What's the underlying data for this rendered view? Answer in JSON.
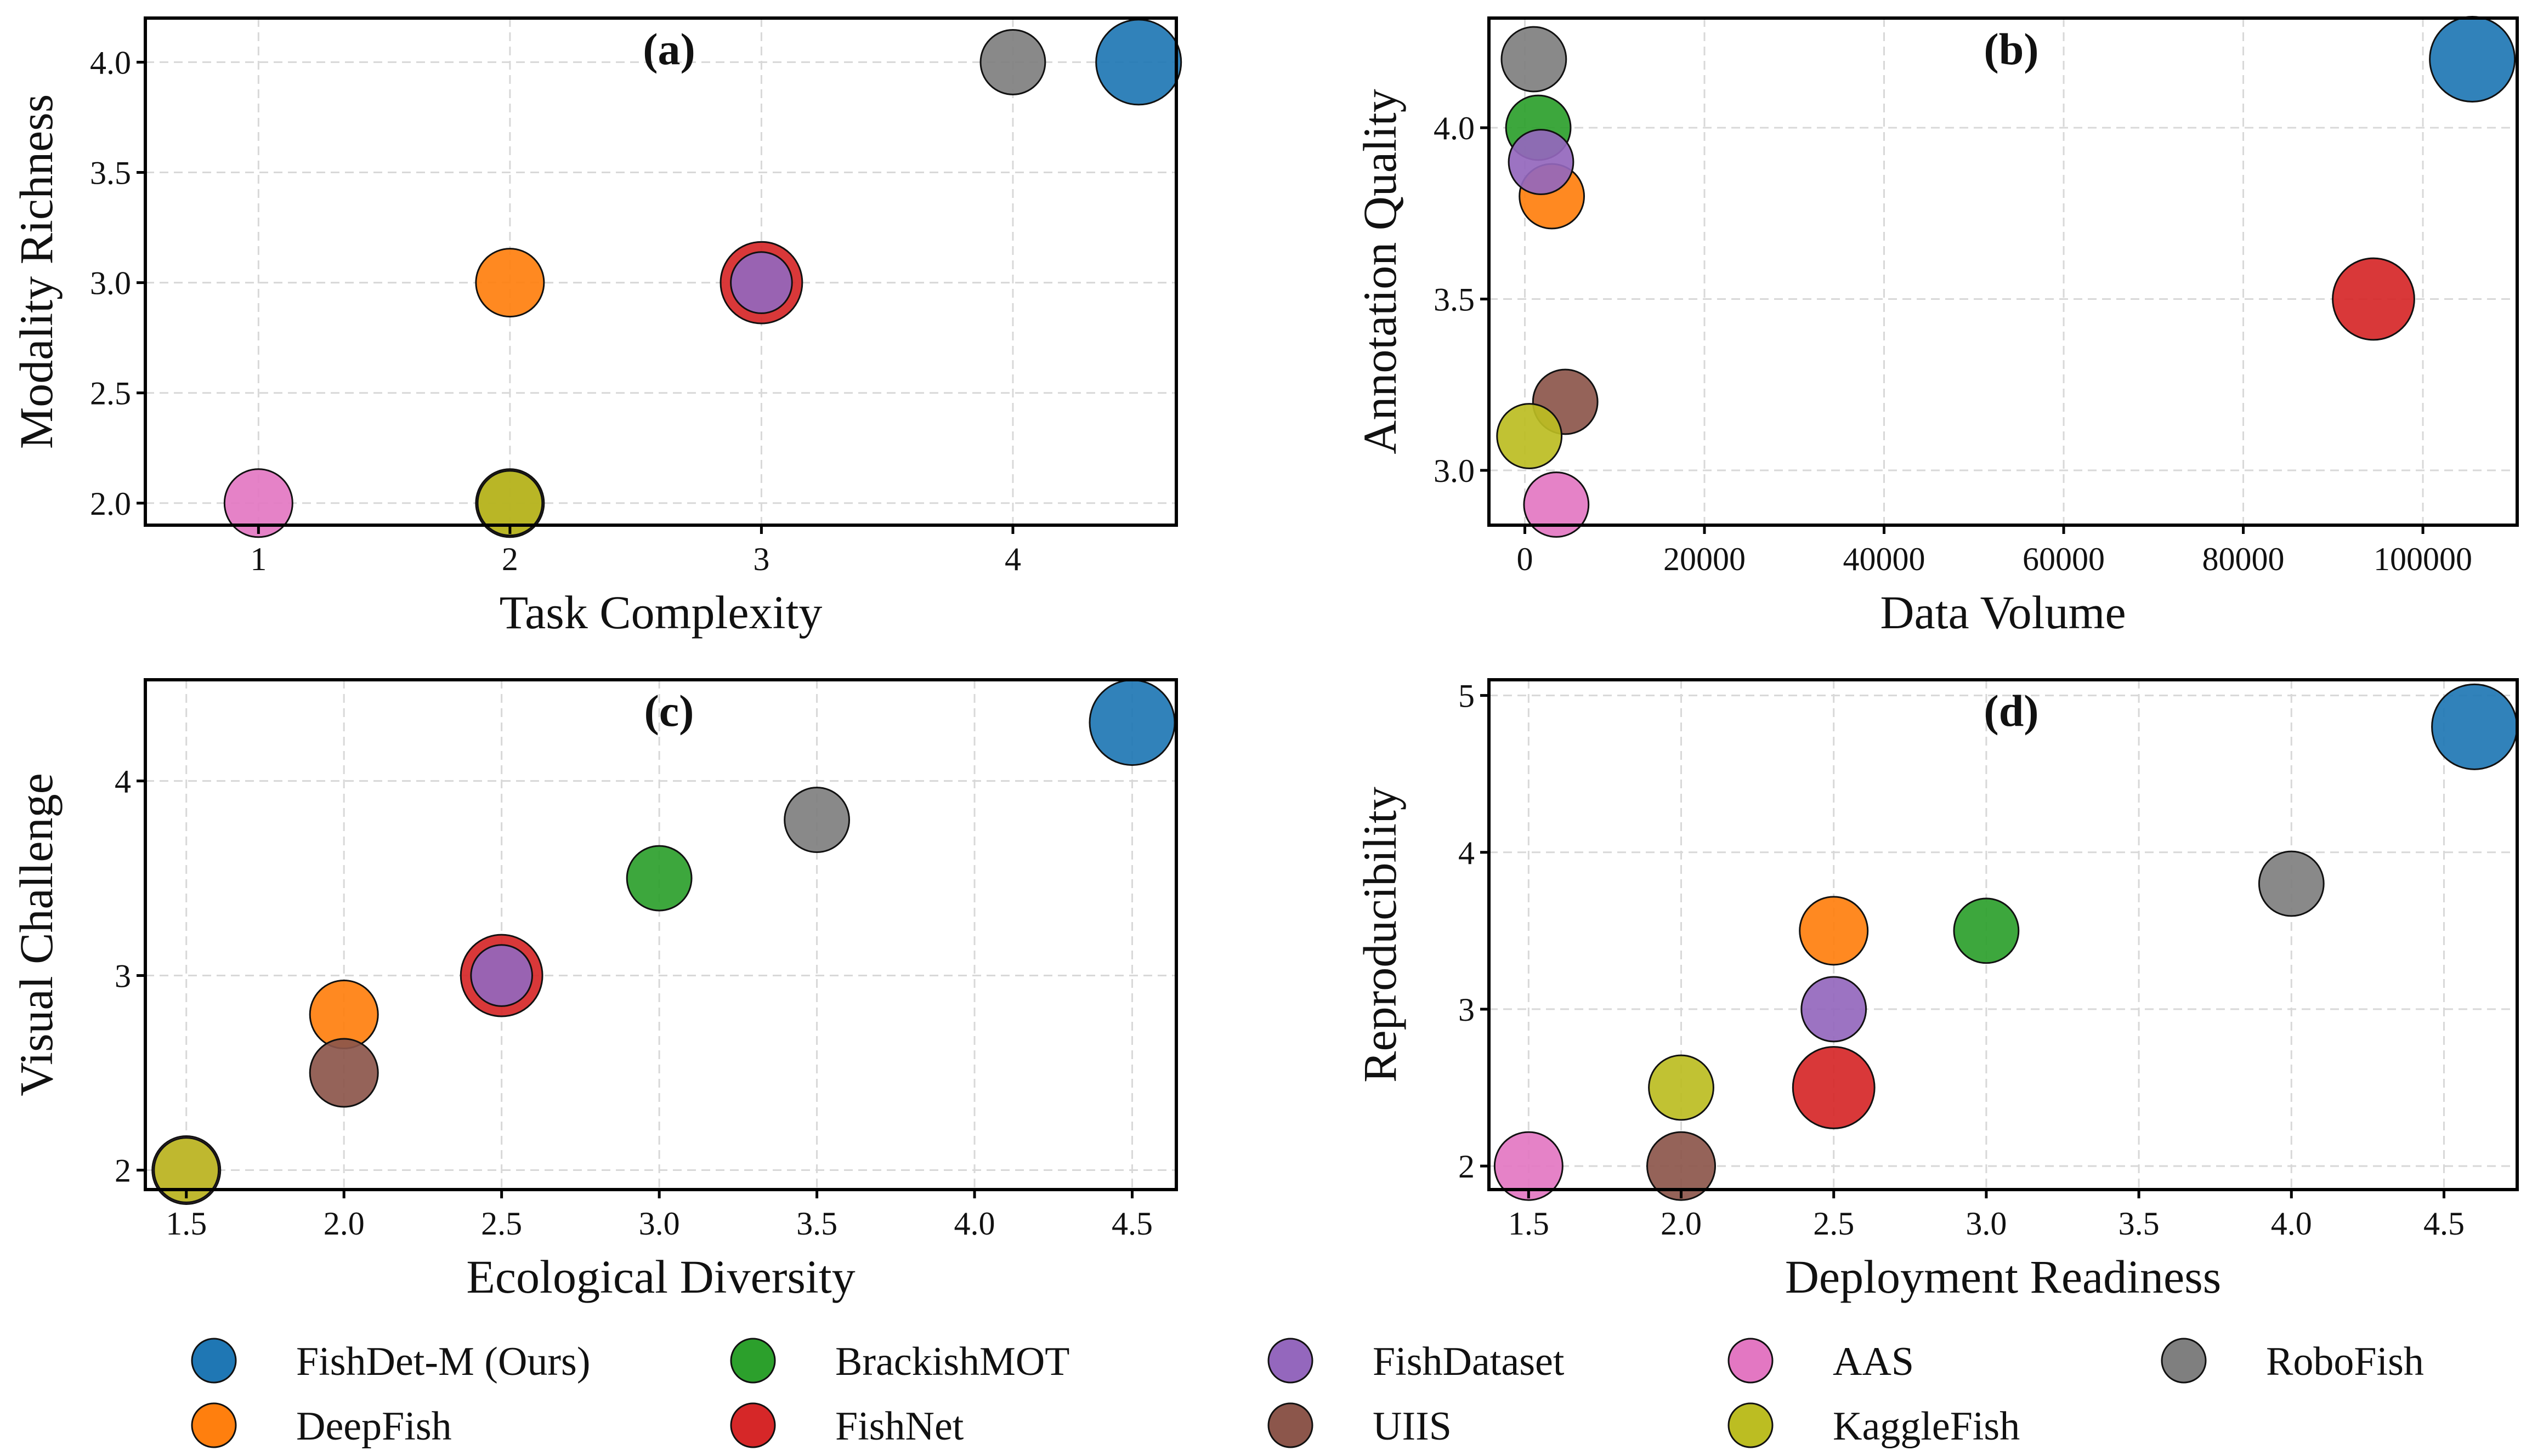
{
  "legend": [
    {
      "name": "FishDet-M (Ours)",
      "color": "#1f77b4"
    },
    {
      "name": "DeepFish",
      "color": "#ff7f0e"
    },
    {
      "name": "BrackishMOT",
      "color": "#2ca02c"
    },
    {
      "name": "FishNet",
      "color": "#d62728"
    },
    {
      "name": "FishDataset",
      "color": "#9467bd"
    },
    {
      "name": "UIIS",
      "color": "#8c564b"
    },
    {
      "name": "AAS",
      "color": "#e377c2"
    },
    {
      "name": "KaggleFish",
      "color": "#bcbd22"
    },
    {
      "name": "RoboFish",
      "color": "#7f7f7f"
    }
  ],
  "chart_data": [
    {
      "type": "scatter",
      "panel_label": "(a)",
      "xlabel": "Task Complexity",
      "ylabel": "Modality Richness",
      "xlim": [
        0.55,
        4.65
      ],
      "ylim": [
        1.9,
        4.2
      ],
      "xticks": [
        1,
        2,
        3,
        4
      ],
      "xtick_labels": [
        "1",
        "2",
        "3",
        "4"
      ],
      "yticks": [
        2.0,
        2.5,
        3.0,
        3.5,
        4.0
      ],
      "ytick_labels": [
        "2.0",
        "2.5",
        "3.0",
        "3.5",
        "4.0"
      ],
      "grid": true,
      "points": [
        {
          "dataset": "UIIS",
          "x": 2,
          "y": 2.0,
          "size": 1.0
        },
        {
          "dataset": "KaggleFish",
          "x": 2,
          "y": 2.0,
          "size": 0.95
        },
        {
          "dataset": "AAS",
          "x": 1,
          "y": 2.0,
          "size": 1.0
        },
        {
          "dataset": "DeepFish",
          "x": 2,
          "y": 3.0,
          "size": 1.0
        },
        {
          "dataset": "FishNet",
          "x": 3,
          "y": 3.0,
          "size": 1.2
        },
        {
          "dataset": "FishDataset",
          "x": 3,
          "y": 3.0,
          "size": 0.9
        },
        {
          "dataset": "RoboFish",
          "x": 4,
          "y": 4.0,
          "size": 0.95
        },
        {
          "dataset": "FishDet-M (Ours)",
          "x": 4.5,
          "y": 4.0,
          "size": 1.25
        }
      ]
    },
    {
      "type": "scatter",
      "panel_label": "(b)",
      "xlabel": "Data Volume",
      "ylabel": "Annotation Quality",
      "xlim": [
        -4000,
        110500
      ],
      "ylim": [
        2.84,
        4.32
      ],
      "xticks": [
        0,
        20000,
        40000,
        60000,
        80000,
        100000
      ],
      "xtick_labels": [
        "0",
        "20000",
        "40000",
        "60000",
        "80000",
        "100000"
      ],
      "yticks": [
        3.0,
        3.5,
        4.0
      ],
      "ytick_labels": [
        "3.0",
        "3.5",
        "4.0"
      ],
      "grid": true,
      "points": [
        {
          "dataset": "RoboFish",
          "x": 1000,
          "y": 4.2,
          "size": 0.95
        },
        {
          "dataset": "BrackishMOT",
          "x": 1500,
          "y": 4.0,
          "size": 0.95
        },
        {
          "dataset": "DeepFish",
          "x": 3000,
          "y": 3.8,
          "size": 0.95
        },
        {
          "dataset": "FishDataset",
          "x": 1800,
          "y": 3.9,
          "size": 0.95
        },
        {
          "dataset": "UIIS",
          "x": 4500,
          "y": 3.2,
          "size": 0.95
        },
        {
          "dataset": "KaggleFish",
          "x": 500,
          "y": 3.1,
          "size": 0.95
        },
        {
          "dataset": "AAS",
          "x": 3500,
          "y": 2.9,
          "size": 0.95
        },
        {
          "dataset": "FishNet",
          "x": 94500,
          "y": 3.5,
          "size": 1.2
        },
        {
          "dataset": "FishDet-M (Ours)",
          "x": 105500,
          "y": 4.2,
          "size": 1.25
        }
      ]
    },
    {
      "type": "scatter",
      "panel_label": "(c)",
      "xlabel": "Ecological Diversity",
      "ylabel": "Visual Challenge",
      "xlim": [
        1.37,
        4.64
      ],
      "ylim": [
        1.9,
        4.52
      ],
      "xticks": [
        1.5,
        2.0,
        2.5,
        3.0,
        3.5,
        4.0,
        4.5
      ],
      "xtick_labels": [
        "1.5",
        "2.0",
        "2.5",
        "3.0",
        "3.5",
        "4.0",
        "4.5"
      ],
      "yticks": [
        2,
        3,
        4
      ],
      "ytick_labels": [
        "2",
        "3",
        "4"
      ],
      "grid": true,
      "points": [
        {
          "dataset": "AAS",
          "x": 1.5,
          "y": 2.0,
          "size": 1.0
        },
        {
          "dataset": "KaggleFish",
          "x": 1.5,
          "y": 2.0,
          "size": 0.95
        },
        {
          "dataset": "DeepFish",
          "x": 2.0,
          "y": 2.8,
          "size": 1.0
        },
        {
          "dataset": "UIIS",
          "x": 2.0,
          "y": 2.5,
          "size": 1.0
        },
        {
          "dataset": "FishNet",
          "x": 2.5,
          "y": 3.0,
          "size": 1.2
        },
        {
          "dataset": "FishDataset",
          "x": 2.5,
          "y": 3.0,
          "size": 0.9
        },
        {
          "dataset": "BrackishMOT",
          "x": 3.0,
          "y": 3.5,
          "size": 0.95
        },
        {
          "dataset": "RoboFish",
          "x": 3.5,
          "y": 3.8,
          "size": 0.95
        },
        {
          "dataset": "FishDet-M (Ours)",
          "x": 4.5,
          "y": 4.3,
          "size": 1.25
        }
      ]
    },
    {
      "type": "scatter",
      "panel_label": "(d)",
      "xlabel": "Deployment Readiness",
      "ylabel": "Reproducibility",
      "xlim": [
        1.37,
        4.74
      ],
      "ylim": [
        1.85,
        5.1
      ],
      "xticks": [
        1.5,
        2.0,
        2.5,
        3.0,
        3.5,
        4.0,
        4.5
      ],
      "xtick_labels": [
        "1.5",
        "2.0",
        "2.5",
        "3.0",
        "3.5",
        "4.0",
        "4.5"
      ],
      "yticks": [
        2,
        3,
        4,
        5
      ],
      "ytick_labels": [
        "2",
        "3",
        "4",
        "5"
      ],
      "grid": true,
      "points": [
        {
          "dataset": "AAS",
          "x": 1.5,
          "y": 2.0,
          "size": 1.0
        },
        {
          "dataset": "UIIS",
          "x": 2.0,
          "y": 2.0,
          "size": 1.0
        },
        {
          "dataset": "KaggleFish",
          "x": 2.0,
          "y": 2.5,
          "size": 0.95
        },
        {
          "dataset": "FishNet",
          "x": 2.5,
          "y": 2.5,
          "size": 1.2
        },
        {
          "dataset": "FishDataset",
          "x": 2.5,
          "y": 3.0,
          "size": 0.95
        },
        {
          "dataset": "DeepFish",
          "x": 2.5,
          "y": 3.5,
          "size": 1.0
        },
        {
          "dataset": "BrackishMOT",
          "x": 3.0,
          "y": 3.5,
          "size": 0.95
        },
        {
          "dataset": "RoboFish",
          "x": 4.0,
          "y": 3.8,
          "size": 0.95
        },
        {
          "dataset": "FishDet-M (Ours)",
          "x": 4.6,
          "y": 4.8,
          "size": 1.25
        }
      ]
    }
  ]
}
